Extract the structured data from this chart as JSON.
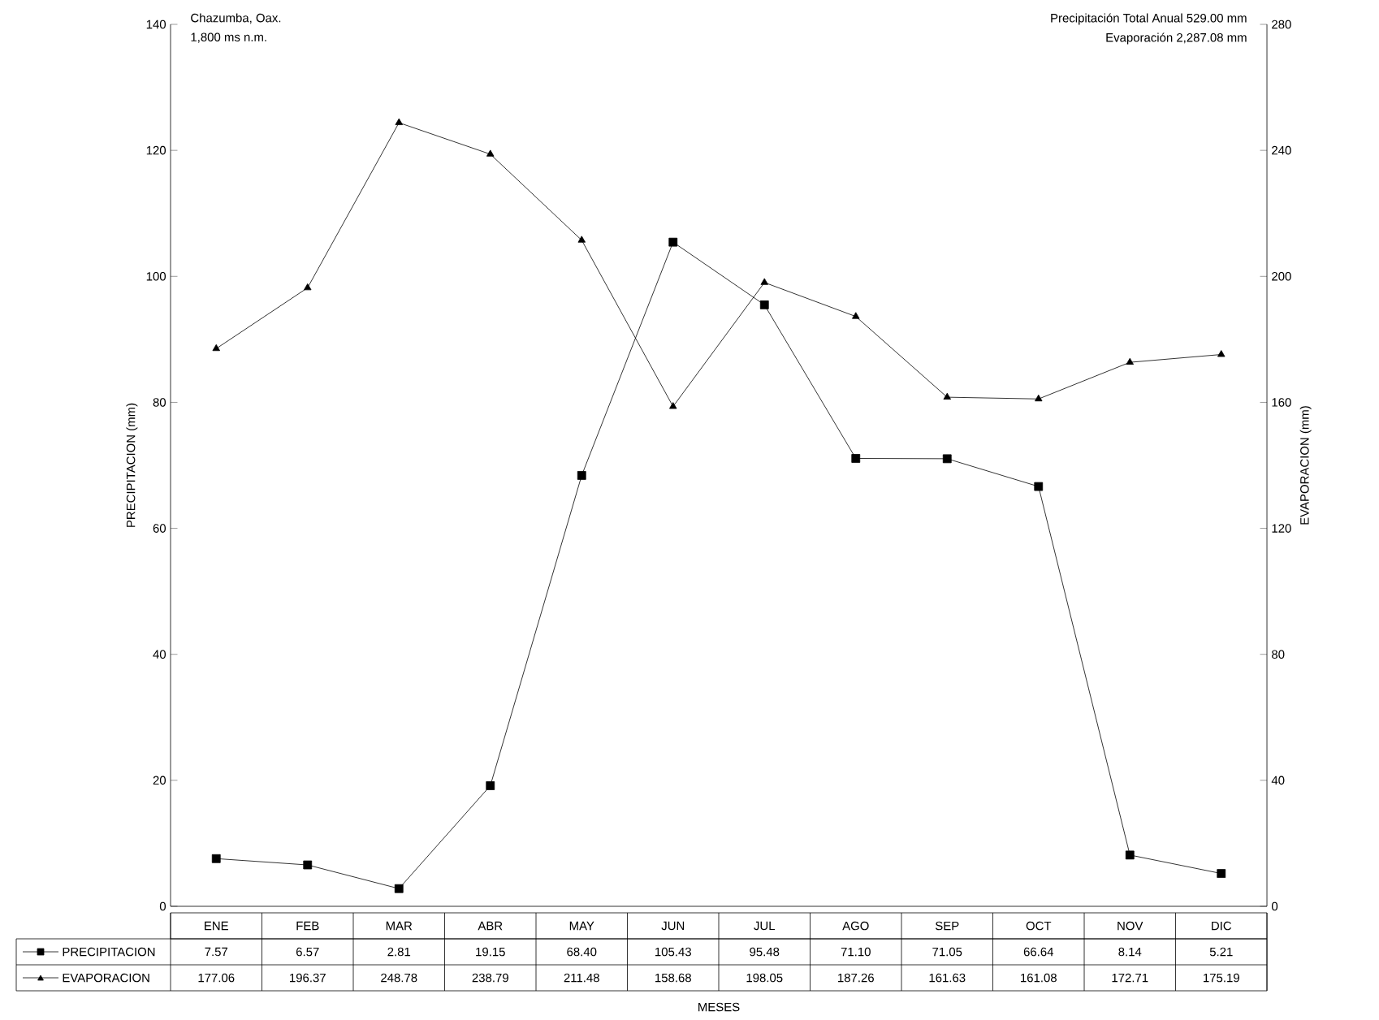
{
  "chart_data": {
    "type": "line",
    "ylabel": "PRECIPITACION (mm)",
    "y2label": "EVAPORACION (mm)",
    "categories": [
      "ENE",
      "FEB",
      "MAR",
      "ABR",
      "MAY",
      "JUN",
      "JUL",
      "AGO",
      "SEP",
      "OCT",
      "NOV",
      "DIC"
    ],
    "series": [
      {
        "name": "PRECIPITACION",
        "color": "#000000",
        "marker": "square",
        "values": [
          7.57,
          6.57,
          2.81,
          19.15,
          68.4,
          105.43,
          95.48,
          71.1,
          71.05,
          66.64,
          8.14,
          5.21
        ],
        "value_labels": [
          "7.57",
          "6.57",
          "2.81",
          "19.15",
          "68.40",
          "105.43",
          "95.48",
          "71.10",
          "71.05",
          "66.64",
          "8.14",
          "5.21"
        ]
      },
      {
        "name": "EVAPORACION",
        "color": "#000000",
        "marker": "triangle",
        "axis": "y2",
        "values": [
          177.06,
          196.37,
          248.78,
          238.79,
          211.48,
          158.68,
          198.05,
          187.26,
          161.63,
          161.08,
          172.71,
          175.19
        ],
        "value_labels": [
          "177.06",
          "196.37",
          "248.78",
          "238.79",
          "211.48",
          "158.68",
          "198.05",
          "187.26",
          "161.63",
          "161.08",
          "172.71",
          "175.19"
        ]
      }
    ],
    "ylim": [
      0,
      140
    ],
    "yticks": [
      0,
      20,
      40,
      60,
      80,
      100,
      120,
      140
    ],
    "y2lim": [
      0,
      280
    ],
    "y2ticks": [
      0,
      40,
      80,
      120,
      160,
      200,
      240,
      280
    ],
    "annotations": [
      "Chazumba, Oax.",
      "1,800 ms n.m.",
      "Precipitación Total Anual 529.00 mm",
      "Evaporación 2,287.08 mm",
      "MESES"
    ],
    "line_style": "solid",
    "grid": false,
    "legend": "bottom"
  }
}
